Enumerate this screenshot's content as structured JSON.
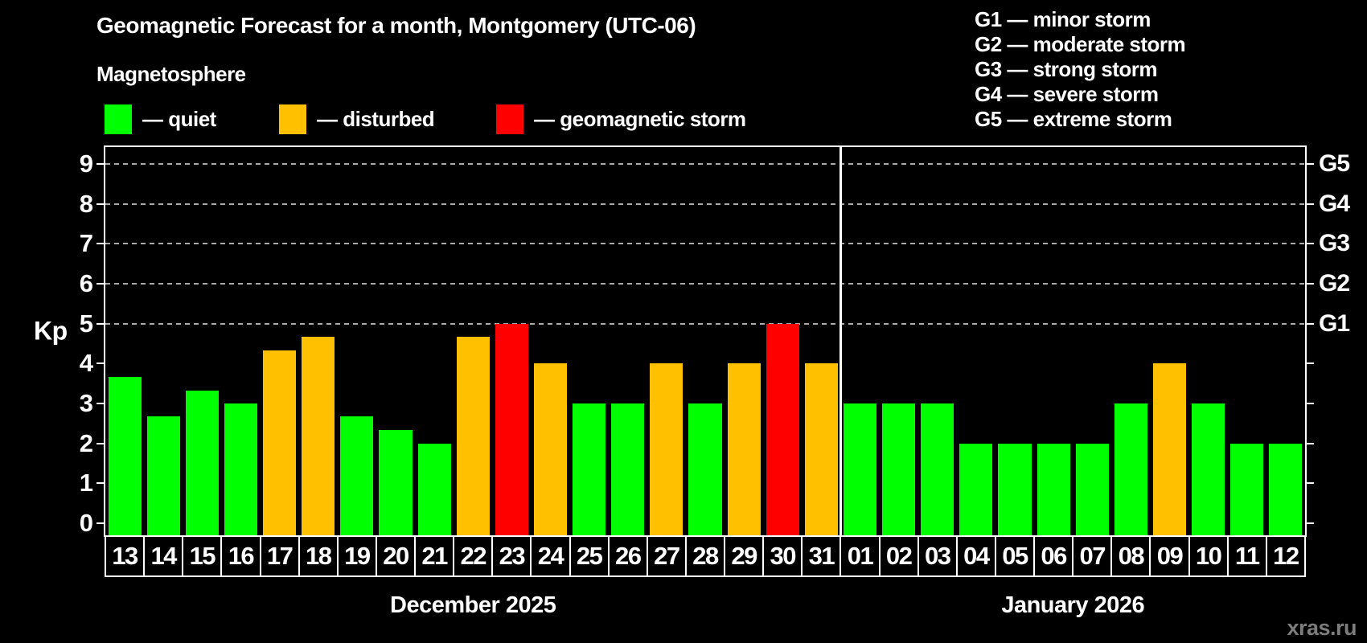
{
  "header": {
    "title": "Geomagnetic Forecast for a month, Montgomery (UTC-06)",
    "subtitle": "Magnetosphere"
  },
  "legend": {
    "items": [
      {
        "label": "— quiet",
        "level": "quiet"
      },
      {
        "label": "— disturbed",
        "level": "disturbed"
      },
      {
        "label": "— geomagnetic storm",
        "level": "storm"
      }
    ]
  },
  "g_scale_legend": [
    "G1 — minor storm",
    "G2 — moderate storm",
    "G3 — strong storm",
    "G4 — severe storm",
    "G5 — extreme storm"
  ],
  "colors": {
    "quiet": "#00ff00",
    "disturbed": "#ffc000",
    "storm": "#ff0000",
    "background": "#000000",
    "axis": "#ffffff",
    "grid": "#aaaaaa",
    "watermark_text": "#7d7d7d"
  },
  "chart_data": {
    "type": "bar",
    "title": "Geomagnetic Forecast for a month, Montgomery (UTC-06)",
    "subtitle": "Magnetosphere",
    "ylabel": "Kp",
    "xlabel": "",
    "ylim": [
      -0.3,
      9.42
    ],
    "yticks": [
      0,
      1,
      2,
      3,
      4,
      5,
      6,
      7,
      8,
      9
    ],
    "grid_values": [
      5,
      6,
      7,
      8,
      9
    ],
    "grid": "dashed-horizontal-at-storm-levels",
    "legend_position": "top-left",
    "right_axis_labels": [
      {
        "label": "G1",
        "value": 5
      },
      {
        "label": "G2",
        "value": 6
      },
      {
        "label": "G3",
        "value": 7
      },
      {
        "label": "G4",
        "value": 8
      },
      {
        "label": "G5",
        "value": 9
      }
    ],
    "months": [
      {
        "label": "December 2025",
        "days": 19
      },
      {
        "label": "January 2026",
        "days": 12
      }
    ],
    "bars": [
      {
        "month": "December 2025",
        "day": "13",
        "value": 3.67,
        "level": "quiet"
      },
      {
        "month": "December 2025",
        "day": "14",
        "value": 2.67,
        "level": "quiet"
      },
      {
        "month": "December 2025",
        "day": "15",
        "value": 3.33,
        "level": "quiet"
      },
      {
        "month": "December 2025",
        "day": "16",
        "value": 3.0,
        "level": "quiet"
      },
      {
        "month": "December 2025",
        "day": "17",
        "value": 4.33,
        "level": "disturbed"
      },
      {
        "month": "December 2025",
        "day": "18",
        "value": 4.67,
        "level": "disturbed"
      },
      {
        "month": "December 2025",
        "day": "19",
        "value": 2.67,
        "level": "quiet"
      },
      {
        "month": "December 2025",
        "day": "20",
        "value": 2.33,
        "level": "quiet"
      },
      {
        "month": "December 2025",
        "day": "21",
        "value": 2.0,
        "level": "quiet"
      },
      {
        "month": "December 2025",
        "day": "22",
        "value": 4.67,
        "level": "disturbed"
      },
      {
        "month": "December 2025",
        "day": "23",
        "value": 5.0,
        "level": "storm"
      },
      {
        "month": "December 2025",
        "day": "24",
        "value": 4.0,
        "level": "disturbed"
      },
      {
        "month": "December 2025",
        "day": "25",
        "value": 3.0,
        "level": "quiet"
      },
      {
        "month": "December 2025",
        "day": "26",
        "value": 3.0,
        "level": "quiet"
      },
      {
        "month": "December 2025",
        "day": "27",
        "value": 4.0,
        "level": "disturbed"
      },
      {
        "month": "December 2025",
        "day": "28",
        "value": 3.0,
        "level": "quiet"
      },
      {
        "month": "December 2025",
        "day": "29",
        "value": 4.0,
        "level": "disturbed"
      },
      {
        "month": "December 2025",
        "day": "30",
        "value": 5.0,
        "level": "storm"
      },
      {
        "month": "December 2025",
        "day": "31",
        "value": 4.0,
        "level": "disturbed"
      },
      {
        "month": "January 2026",
        "day": "01",
        "value": 3.0,
        "level": "quiet"
      },
      {
        "month": "January 2026",
        "day": "02",
        "value": 3.0,
        "level": "quiet"
      },
      {
        "month": "January 2026",
        "day": "03",
        "value": 3.0,
        "level": "quiet"
      },
      {
        "month": "January 2026",
        "day": "04",
        "value": 2.0,
        "level": "quiet"
      },
      {
        "month": "January 2026",
        "day": "05",
        "value": 2.0,
        "level": "quiet"
      },
      {
        "month": "January 2026",
        "day": "06",
        "value": 2.0,
        "level": "quiet"
      },
      {
        "month": "January 2026",
        "day": "07",
        "value": 2.0,
        "level": "quiet"
      },
      {
        "month": "January 2026",
        "day": "08",
        "value": 3.0,
        "level": "quiet"
      },
      {
        "month": "January 2026",
        "day": "09",
        "value": 4.0,
        "level": "disturbed"
      },
      {
        "month": "January 2026",
        "day": "10",
        "value": 3.0,
        "level": "quiet"
      },
      {
        "month": "January 2026",
        "day": "11",
        "value": 2.0,
        "level": "quiet"
      },
      {
        "month": "January 2026",
        "day": "12",
        "value": 2.0,
        "level": "quiet"
      }
    ]
  },
  "watermark": "xras.ru"
}
